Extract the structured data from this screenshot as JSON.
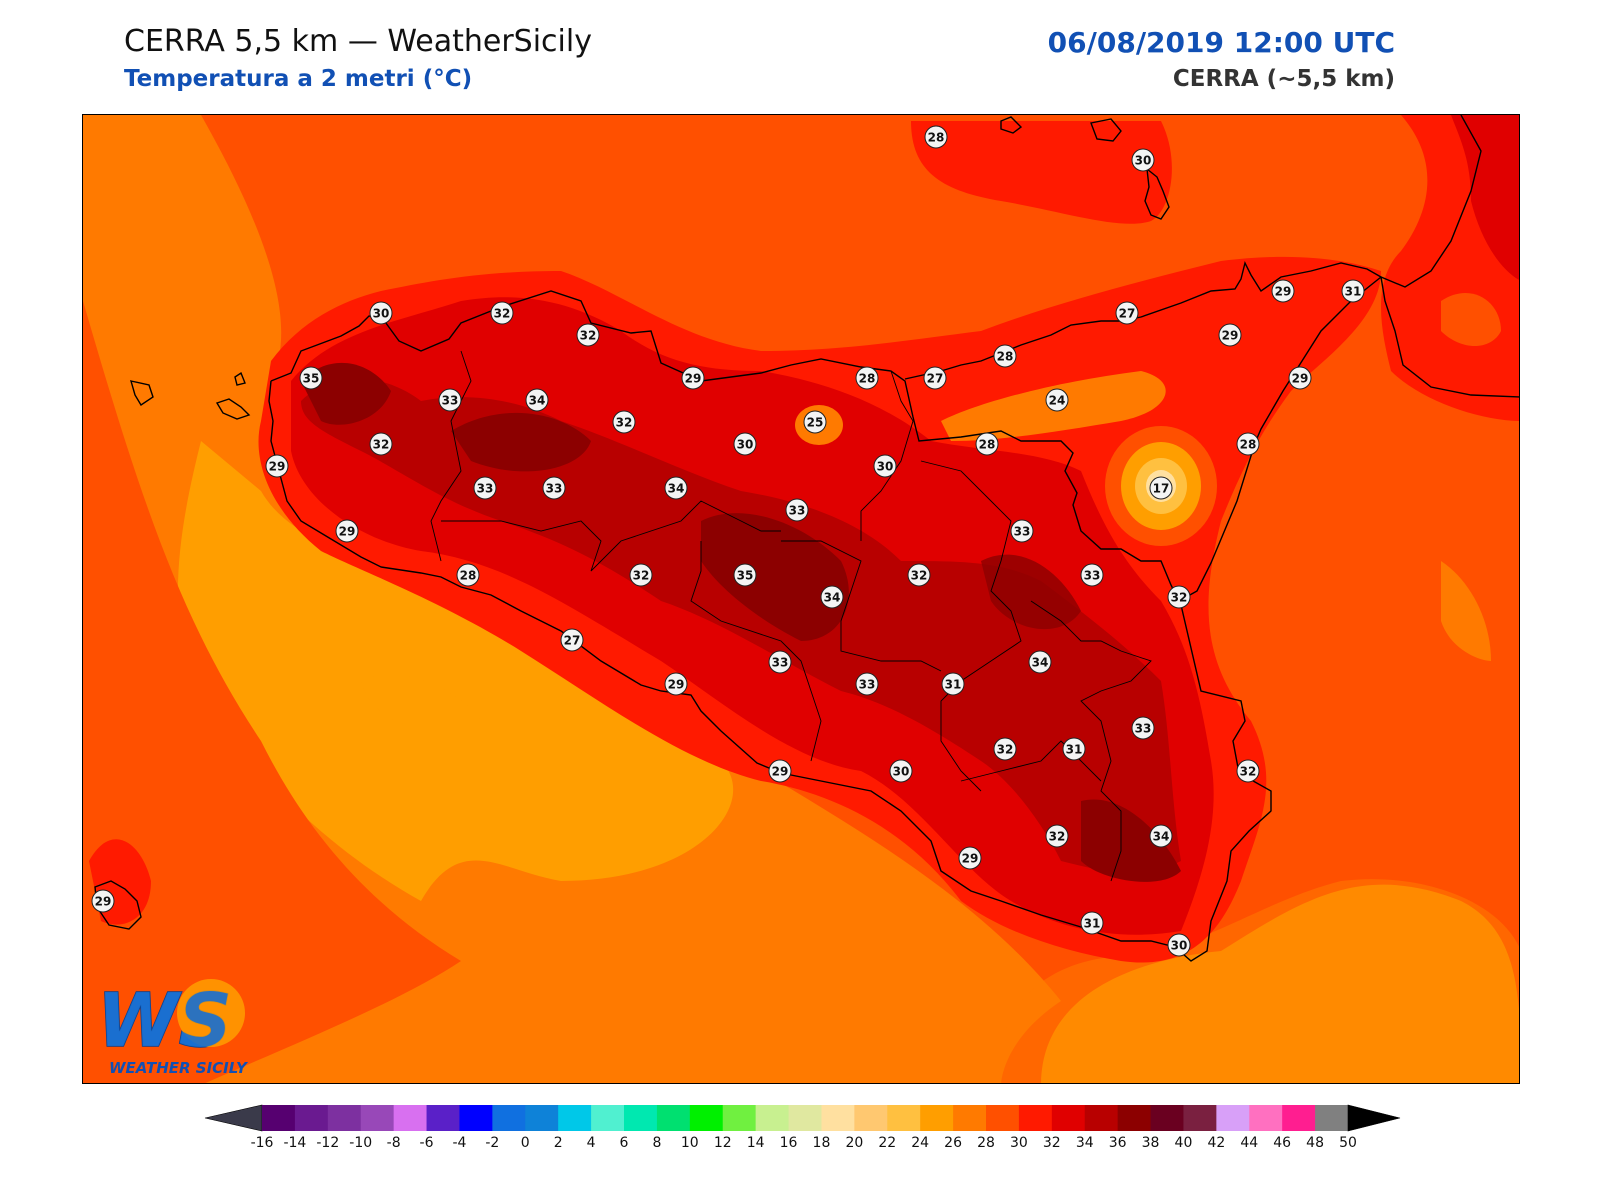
{
  "header": {
    "title_left": "CERRA 5,5 km — WeatherSicily",
    "subtitle_left": "Temperatura a 2 metri (°C)",
    "date": "06/08/2019 12:00 UTC",
    "model": "CERRA (~5,5 km)"
  },
  "logo": {
    "letters": "WS",
    "text": "WEATHER SICILY"
  },
  "colors": {
    "sea": "#ff5000",
    "c24": "#ff9e00",
    "c26": "#ff7a00",
    "c28": "#ff5000",
    "c30": "#ff1a00",
    "c32": "#e00000",
    "c34": "#b80000",
    "c36": "#8c0000",
    "title_blue": "#1150b4"
  },
  "stations": [
    {
      "v": "28",
      "p": [
        935,
        136
      ]
    },
    {
      "v": "30",
      "p": [
        1142,
        159
      ]
    },
    {
      "v": "30",
      "p": [
        380,
        312
      ]
    },
    {
      "v": "32",
      "p": [
        501,
        312
      ]
    },
    {
      "v": "32",
      "p": [
        587,
        334
      ]
    },
    {
      "v": "35",
      "p": [
        310,
        377
      ]
    },
    {
      "v": "33",
      "p": [
        449,
        399
      ]
    },
    {
      "v": "34",
      "p": [
        536,
        399
      ]
    },
    {
      "v": "29",
      "p": [
        692,
        377
      ]
    },
    {
      "v": "28",
      "p": [
        866,
        377
      ]
    },
    {
      "v": "27",
      "p": [
        934,
        377
      ]
    },
    {
      "v": "28",
      "p": [
        1004,
        355
      ]
    },
    {
      "v": "27",
      "p": [
        1126,
        312
      ]
    },
    {
      "v": "29",
      "p": [
        1282,
        290
      ]
    },
    {
      "v": "31",
      "p": [
        1352,
        290
      ]
    },
    {
      "v": "29",
      "p": [
        1229,
        334
      ]
    },
    {
      "v": "29",
      "p": [
        1299,
        377
      ]
    },
    {
      "v": "24",
      "p": [
        1056,
        399
      ]
    },
    {
      "v": "25",
      "p": [
        814,
        421
      ]
    },
    {
      "v": "32",
      "p": [
        623,
        421
      ]
    },
    {
      "v": "32",
      "p": [
        380,
        443
      ]
    },
    {
      "v": "30",
      "p": [
        744,
        443
      ]
    },
    {
      "v": "30",
      "p": [
        884,
        465
      ]
    },
    {
      "v": "28",
      "p": [
        986,
        443
      ]
    },
    {
      "v": "28",
      "p": [
        1247,
        443
      ]
    },
    {
      "v": "29",
      "p": [
        276,
        465
      ]
    },
    {
      "v": "17",
      "p": [
        1160,
        487
      ]
    },
    {
      "v": "33",
      "p": [
        484,
        487
      ]
    },
    {
      "v": "33",
      "p": [
        553,
        487
      ]
    },
    {
      "v": "34",
      "p": [
        675,
        487
      ]
    },
    {
      "v": "33",
      "p": [
        796,
        509
      ]
    },
    {
      "v": "29",
      "p": [
        346,
        530
      ]
    },
    {
      "v": "33",
      "p": [
        1021,
        530
      ]
    },
    {
      "v": "28",
      "p": [
        467,
        574
      ]
    },
    {
      "v": "32",
      "p": [
        640,
        574
      ]
    },
    {
      "v": "35",
      "p": [
        744,
        574
      ]
    },
    {
      "v": "32",
      "p": [
        918,
        574
      ]
    },
    {
      "v": "33",
      "p": [
        1091,
        574
      ]
    },
    {
      "v": "34",
      "p": [
        831,
        596
      ]
    },
    {
      "v": "32",
      "p": [
        1178,
        596
      ]
    },
    {
      "v": "27",
      "p": [
        571,
        639
      ]
    },
    {
      "v": "33",
      "p": [
        779,
        661
      ]
    },
    {
      "v": "34",
      "p": [
        1039,
        661
      ]
    },
    {
      "v": "29",
      "p": [
        675,
        683
      ]
    },
    {
      "v": "33",
      "p": [
        866,
        683
      ]
    },
    {
      "v": "31",
      "p": [
        952,
        683
      ]
    },
    {
      "v": "33",
      "p": [
        1142,
        727
      ]
    },
    {
      "v": "32",
      "p": [
        1004,
        748
      ]
    },
    {
      "v": "31",
      "p": [
        1073,
        748
      ]
    },
    {
      "v": "29",
      "p": [
        779,
        770
      ]
    },
    {
      "v": "30",
      "p": [
        900,
        770
      ]
    },
    {
      "v": "32",
      "p": [
        1247,
        770
      ]
    },
    {
      "v": "29",
      "p": [
        969,
        857
      ]
    },
    {
      "v": "32",
      "p": [
        1056,
        835
      ]
    },
    {
      "v": "34",
      "p": [
        1160,
        835
      ]
    },
    {
      "v": "29",
      "p": [
        102,
        900
      ]
    },
    {
      "v": "31",
      "p": [
        1091,
        922
      ]
    },
    {
      "v": "30",
      "p": [
        1178,
        944
      ]
    }
  ],
  "colorbar": {
    "ticks": [
      "-16",
      "-14",
      "-12",
      "-10",
      "-8",
      "-6",
      "-4",
      "-2",
      "0",
      "2",
      "4",
      "6",
      "8",
      "10",
      "12",
      "14",
      "16",
      "18",
      "20",
      "22",
      "24",
      "26",
      "28",
      "30",
      "32",
      "34",
      "36",
      "38",
      "40",
      "42",
      "44",
      "46",
      "48",
      "50"
    ],
    "colors": [
      "#3d0040",
      "#560070",
      "#6a1a90",
      "#7d30a0",
      "#9848b8",
      "#d870f0",
      "#5a20c8",
      "#0000ff",
      "#1070e0",
      "#0e82d8",
      "#00c8e8",
      "#50f0d0",
      "#00e8b0",
      "#00e070",
      "#00f000",
      "#70f040",
      "#c8f090",
      "#e0e8a0",
      "#ffe0a0",
      "#ffc870",
      "#ffc040",
      "#ff9e00",
      "#ff7a00",
      "#ff5000",
      "#ff1a00",
      "#e00000",
      "#b80000",
      "#8c0000",
      "#6a0020",
      "#7a2040",
      "#d8a0f8",
      "#ff70c0",
      "#ff1e90",
      "#808080",
      "#383838"
    ]
  }
}
